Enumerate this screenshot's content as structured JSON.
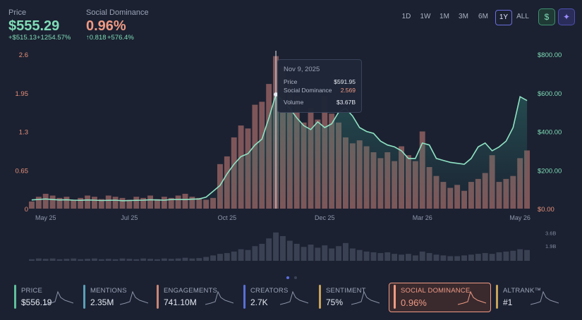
{
  "header": {
    "price_label": "Price",
    "price": "$555.29",
    "price_change": "+$515.13",
    "price_change_pct": "+1254.57%",
    "dominance_label": "Social Dominance",
    "dominance": "0.96%",
    "dominance_change": "↑0.818",
    "dominance_change_pct": "+576.4%"
  },
  "ranges": [
    "1D",
    "1W",
    "1M",
    "3M",
    "6M",
    "1Y",
    "ALL"
  ],
  "icons": [
    "$",
    "✦"
  ],
  "chart_data": [
    {
      "type": "combo",
      "categories": [
        null,
        null,
        "May 25",
        null,
        null,
        null,
        null,
        null,
        null,
        null,
        null,
        null,
        null,
        null,
        "Jul 25",
        null,
        null,
        null,
        null,
        null,
        null,
        null,
        null,
        null,
        null,
        null,
        null,
        null,
        "Oct 25",
        null,
        null,
        null,
        null,
        null,
        null,
        null,
        null,
        null,
        null,
        null,
        null,
        null,
        "Dec 25",
        null,
        null,
        null,
        null,
        null,
        null,
        null,
        null,
        null,
        null,
        null,
        null,
        null,
        "Mar 26",
        null,
        null,
        null,
        null,
        null,
        null,
        null,
        null,
        null,
        null,
        null,
        null,
        null,
        "May 26",
        null
      ],
      "series": [
        {
          "name": "Social Dominance",
          "type": "bar",
          "axis": "y",
          "color": "#8a5c5e",
          "values": [
            0.12,
            0.2,
            0.25,
            0.22,
            0.18,
            0.2,
            0.15,
            0.18,
            0.22,
            0.2,
            0.16,
            0.22,
            0.2,
            0.18,
            0.15,
            0.2,
            0.18,
            0.22,
            0.16,
            0.2,
            0.18,
            0.22,
            0.25,
            0.2,
            0.18,
            0.15,
            0.18,
            0.75,
            0.88,
            1.2,
            1.4,
            1.35,
            1.75,
            1.8,
            2.1,
            2.569,
            2.4,
            2.2,
            1.9,
            1.45,
            1.7,
            1.5,
            1.9,
            1.6,
            1.45,
            1.2,
            1.1,
            1.15,
            1.05,
            0.95,
            0.85,
            0.95,
            0.8,
            1.05,
            0.9,
            0.8,
            1.3,
            0.7,
            0.55,
            0.45,
            0.35,
            0.4,
            0.3,
            0.45,
            0.5,
            0.6,
            0.9,
            0.45,
            0.5,
            0.55,
            0.85,
            0.98
          ]
        },
        {
          "name": "Price",
          "type": "line",
          "axis": "y2",
          "color": "#8fe3c4",
          "values": [
            45,
            48,
            50,
            47,
            45,
            46,
            44,
            43,
            45,
            44,
            42,
            43,
            44,
            41,
            42,
            43,
            44,
            46,
            45,
            44,
            47,
            48,
            47,
            49,
            50,
            60,
            90,
            120,
            180,
            230,
            270,
            285,
            330,
            360,
            470,
            591.95,
            560,
            520,
            470,
            430,
            410,
            450,
            420,
            440,
            500,
            520,
            480,
            420,
            400,
            390,
            350,
            330,
            320,
            300,
            260,
            260,
            340,
            330,
            260,
            250,
            240,
            235,
            230,
            260,
            320,
            340,
            300,
            320,
            350,
            420,
            580,
            560
          ]
        }
      ],
      "ylim": [
        0,
        2.6
      ],
      "yticks": [
        0,
        0.65,
        1.3,
        1.95,
        2.6
      ],
      "y2lim": [
        0,
        800
      ],
      "y2ticks": [
        {
          "value": 0,
          "label": "$0.00"
        },
        {
          "value": 200,
          "label": "$200.00"
        },
        {
          "value": 400,
          "label": "$400.00"
        },
        {
          "value": 600,
          "label": "$600.00"
        },
        {
          "value": 800,
          "label": "$800.00"
        }
      ]
    },
    {
      "type": "bar",
      "color": "#3a4152",
      "values": [
        0.2,
        0.3,
        0.25,
        0.3,
        0.2,
        0.25,
        0.3,
        0.2,
        0.25,
        0.3,
        0.2,
        0.25,
        0.2,
        0.3,
        0.25,
        0.2,
        0.3,
        0.25,
        0.2,
        0.3,
        0.25,
        0.3,
        0.4,
        0.3,
        0.35,
        0.5,
        0.7,
        0.9,
        1.0,
        1.2,
        1.5,
        1.4,
        1.9,
        2.2,
        2.9,
        3.67,
        3.2,
        2.6,
        2.2,
        1.8,
        2.1,
        1.7,
        2.0,
        1.6,
        1.9,
        2.3,
        1.6,
        1.4,
        1.2,
        1.1,
        1.0,
        1.1,
        0.9,
        0.8,
        0.9,
        0.7,
        1.2,
        1.0,
        0.8,
        0.7,
        0.6,
        0.6,
        0.7,
        0.8,
        0.9,
        1.0,
        0.9,
        1.1,
        1.2,
        1.3,
        1.5,
        1.4
      ],
      "ylim": [
        0,
        4.2
      ],
      "yticks": [
        {
          "value": 3.6,
          "label": "3.6B"
        },
        {
          "value": 1.9,
          "label": "1.9B"
        }
      ]
    }
  ],
  "tooltip": {
    "date": "Nov 9, 2025",
    "price_label": "Price",
    "price": "$591.95",
    "dominance_label": "Social Dominance",
    "dominance": "2.569",
    "volume_label": "Volume",
    "volume": "$3.67B"
  },
  "cards": [
    {
      "label": "PRICE",
      "value": "$556.19"
    },
    {
      "label": "MENTIONS",
      "value": "2.35M"
    },
    {
      "label": "ENGAGEMENTS",
      "value": "741.10M"
    },
    {
      "label": "CREATORS",
      "value": "2.7K"
    },
    {
      "label": "SENTIMENT",
      "value": "75%"
    },
    {
      "label": "SOCIAL DOMINANCE",
      "value": "0.96%"
    },
    {
      "label": "ALTRANK™",
      "value": "#1"
    }
  ]
}
